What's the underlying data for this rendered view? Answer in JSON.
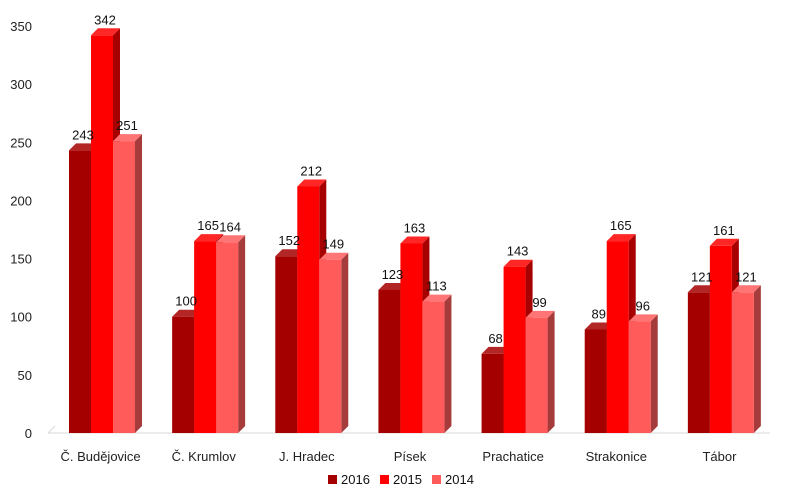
{
  "chart_data": {
    "type": "bar",
    "categories": [
      "Č. Budějovice",
      "Č. Krumlov",
      "J. Hradec",
      "Písek",
      "Prachatice",
      "Strakonice",
      "Tábor"
    ],
    "series": [
      {
        "name": "2016",
        "values": [
          243,
          100,
          152,
          123,
          68,
          89,
          121
        ],
        "color": "#a50000"
      },
      {
        "name": "2015",
        "values": [
          342,
          165,
          212,
          163,
          143,
          165,
          161
        ],
        "color": "#ff0000"
      },
      {
        "name": "2014",
        "values": [
          251,
          164,
          149,
          113,
          99,
          96,
          121
        ],
        "color": "#ff5b5b"
      }
    ],
    "yticks": [
      0,
      50,
      100,
      150,
      200,
      250,
      300,
      350
    ],
    "ylim": [
      0,
      350
    ],
    "grid": false,
    "legend_position": "bottom",
    "style": "3d-bar",
    "title": "",
    "xlabel": "",
    "ylabel": ""
  }
}
